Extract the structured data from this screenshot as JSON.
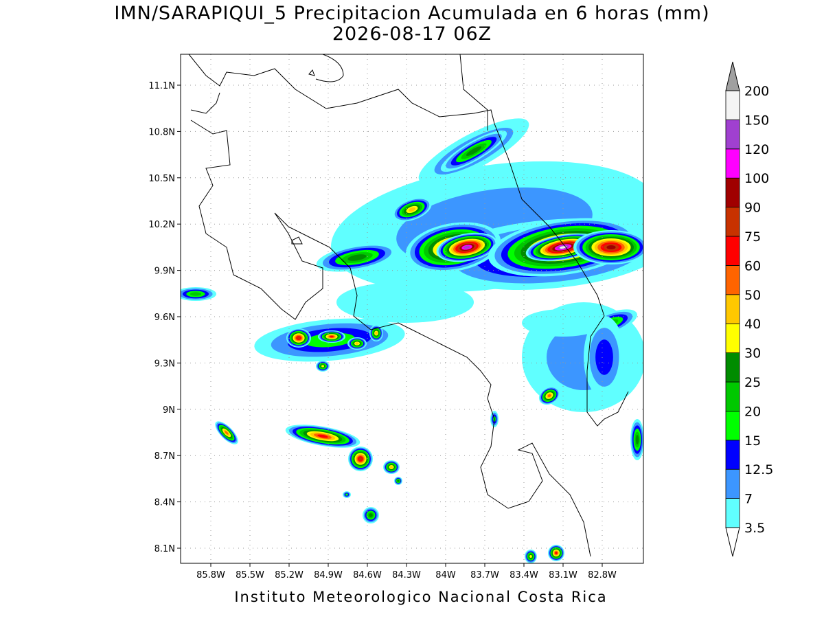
{
  "title": "IMN/SARAPIQUI_5 Precipitacion Acumulada en 6 horas (mm)",
  "subtitle": "2026-08-17 06Z",
  "lat_labels": [
    "11.1N",
    "10.8N",
    "10.5N",
    "10.2N",
    "9.9N",
    "9.6N",
    "9.3N",
    "9N",
    "8.7N",
    "8.4N",
    "8.1N"
  ],
  "lon_labels": [
    "85.8W",
    "85.5W",
    "85.2W",
    "84.9W",
    "84.6W",
    "84.3W",
    "84W",
    "83.7W",
    "83.4W",
    "83.1W",
    "82.8W"
  ],
  "colorbar": {
    "levels": [
      3.5,
      7,
      12.5,
      15,
      20,
      25,
      30,
      40,
      50,
      60,
      75,
      90,
      100,
      120,
      150,
      200
    ],
    "colors": [
      "#60ffff",
      "#3c96ff",
      "#0000ff",
      "#00ff00",
      "#00c800",
      "#008c00",
      "#ffff00",
      "#ffc800",
      "#ff6400",
      "#ff0000",
      "#c83200",
      "#a00000",
      "#ff00ff",
      "#a040d0",
      "#f4f4f4"
    ],
    "over_color": "#a0a0a0",
    "under_color": "#ffffff"
  },
  "footer": "Instituto Meteorologico Nacional Costa Rica"
}
